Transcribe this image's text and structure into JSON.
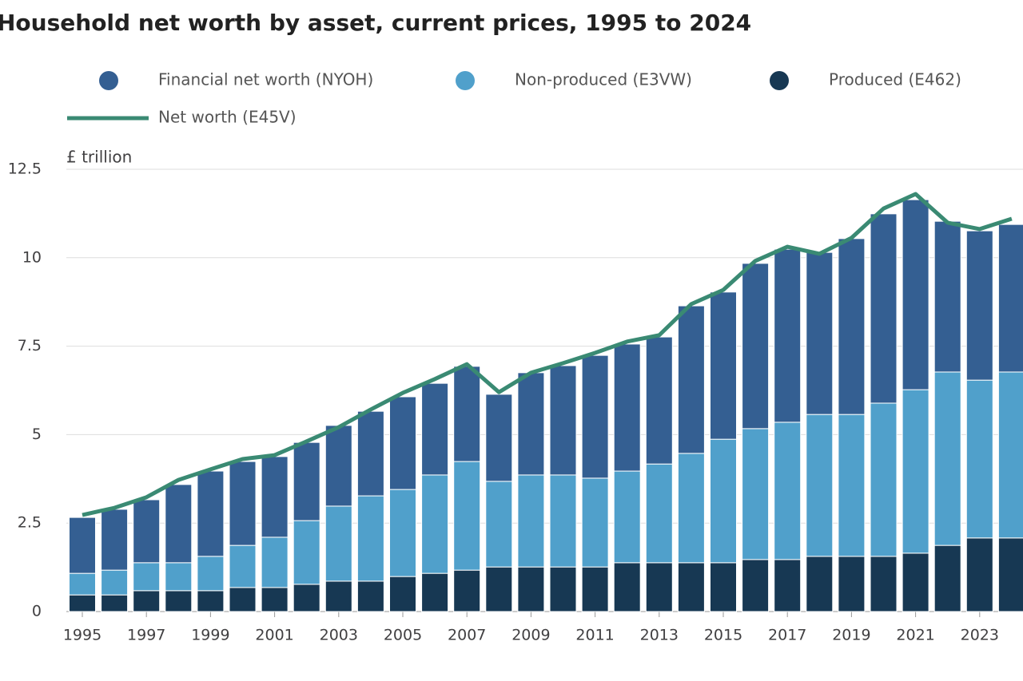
{
  "chart_data": {
    "type": "bar",
    "stacked": true,
    "title": "Household net worth by asset, current prices, 1995 to 2024",
    "y_label": "£ trillion",
    "categories": [
      "1995",
      null,
      "1997",
      null,
      "1999",
      null,
      "2001",
      null,
      "2003",
      null,
      "2005",
      null,
      "2007",
      null,
      "2009",
      null,
      "2011",
      null,
      "2013",
      null,
      "2015",
      null,
      "2017",
      null,
      "2019",
      null,
      "2021",
      null,
      "2023",
      null
    ],
    "series": [
      {
        "name": "Financial net worth (NYOH)",
        "color": "#345f92",
        "values": [
          1.58,
          1.72,
          1.78,
          2.21,
          2.41,
          2.37,
          2.28,
          2.21,
          2.28,
          2.39,
          2.62,
          2.59,
          2.69,
          2.46,
          2.89,
          3.09,
          3.47,
          3.59,
          3.59,
          4.17,
          4.16,
          4.67,
          4.89,
          4.58,
          4.97,
          5.35,
          5.37,
          4.26,
          4.22,
          4.17
        ]
      },
      {
        "name": "Non-produced (E3VW)",
        "color": "#50a0cb",
        "values": [
          0.61,
          0.7,
          0.79,
          0.79,
          0.97,
          1.19,
          1.42,
          1.8,
          2.12,
          2.41,
          2.46,
          2.78,
          3.07,
          2.42,
          2.6,
          2.6,
          2.51,
          2.59,
          2.79,
          3.09,
          3.49,
          3.7,
          3.88,
          4.01,
          4.01,
          4.33,
          4.62,
          4.9,
          4.46,
          4.69
        ]
      },
      {
        "name": "Produced (E462)",
        "color": "#173853",
        "values": [
          0.47,
          0.47,
          0.59,
          0.59,
          0.59,
          0.68,
          0.68,
          0.77,
          0.86,
          0.86,
          0.99,
          1.08,
          1.17,
          1.26,
          1.26,
          1.26,
          1.26,
          1.38,
          1.38,
          1.38,
          1.38,
          1.47,
          1.47,
          1.56,
          1.56,
          1.56,
          1.65,
          1.87,
          2.08,
          2.08
        ]
      },
      {
        "name": "Net worth (E45V)",
        "color": "#3a8a73",
        "type": "line",
        "values": [
          2.73,
          2.93,
          3.23,
          3.72,
          4.02,
          4.31,
          4.42,
          4.81,
          5.21,
          5.71,
          6.18,
          6.57,
          6.99,
          6.2,
          6.75,
          7.02,
          7.31,
          7.63,
          7.81,
          8.69,
          9.09,
          9.91,
          10.31,
          10.11,
          10.56,
          11.39,
          11.8,
          10.99,
          10.81,
          11.1
        ]
      }
    ],
    "ylim": [
      0,
      12.5
    ],
    "yticks": [
      0,
      2.5,
      5,
      7.5,
      10,
      12.5
    ],
    "grid": true
  }
}
